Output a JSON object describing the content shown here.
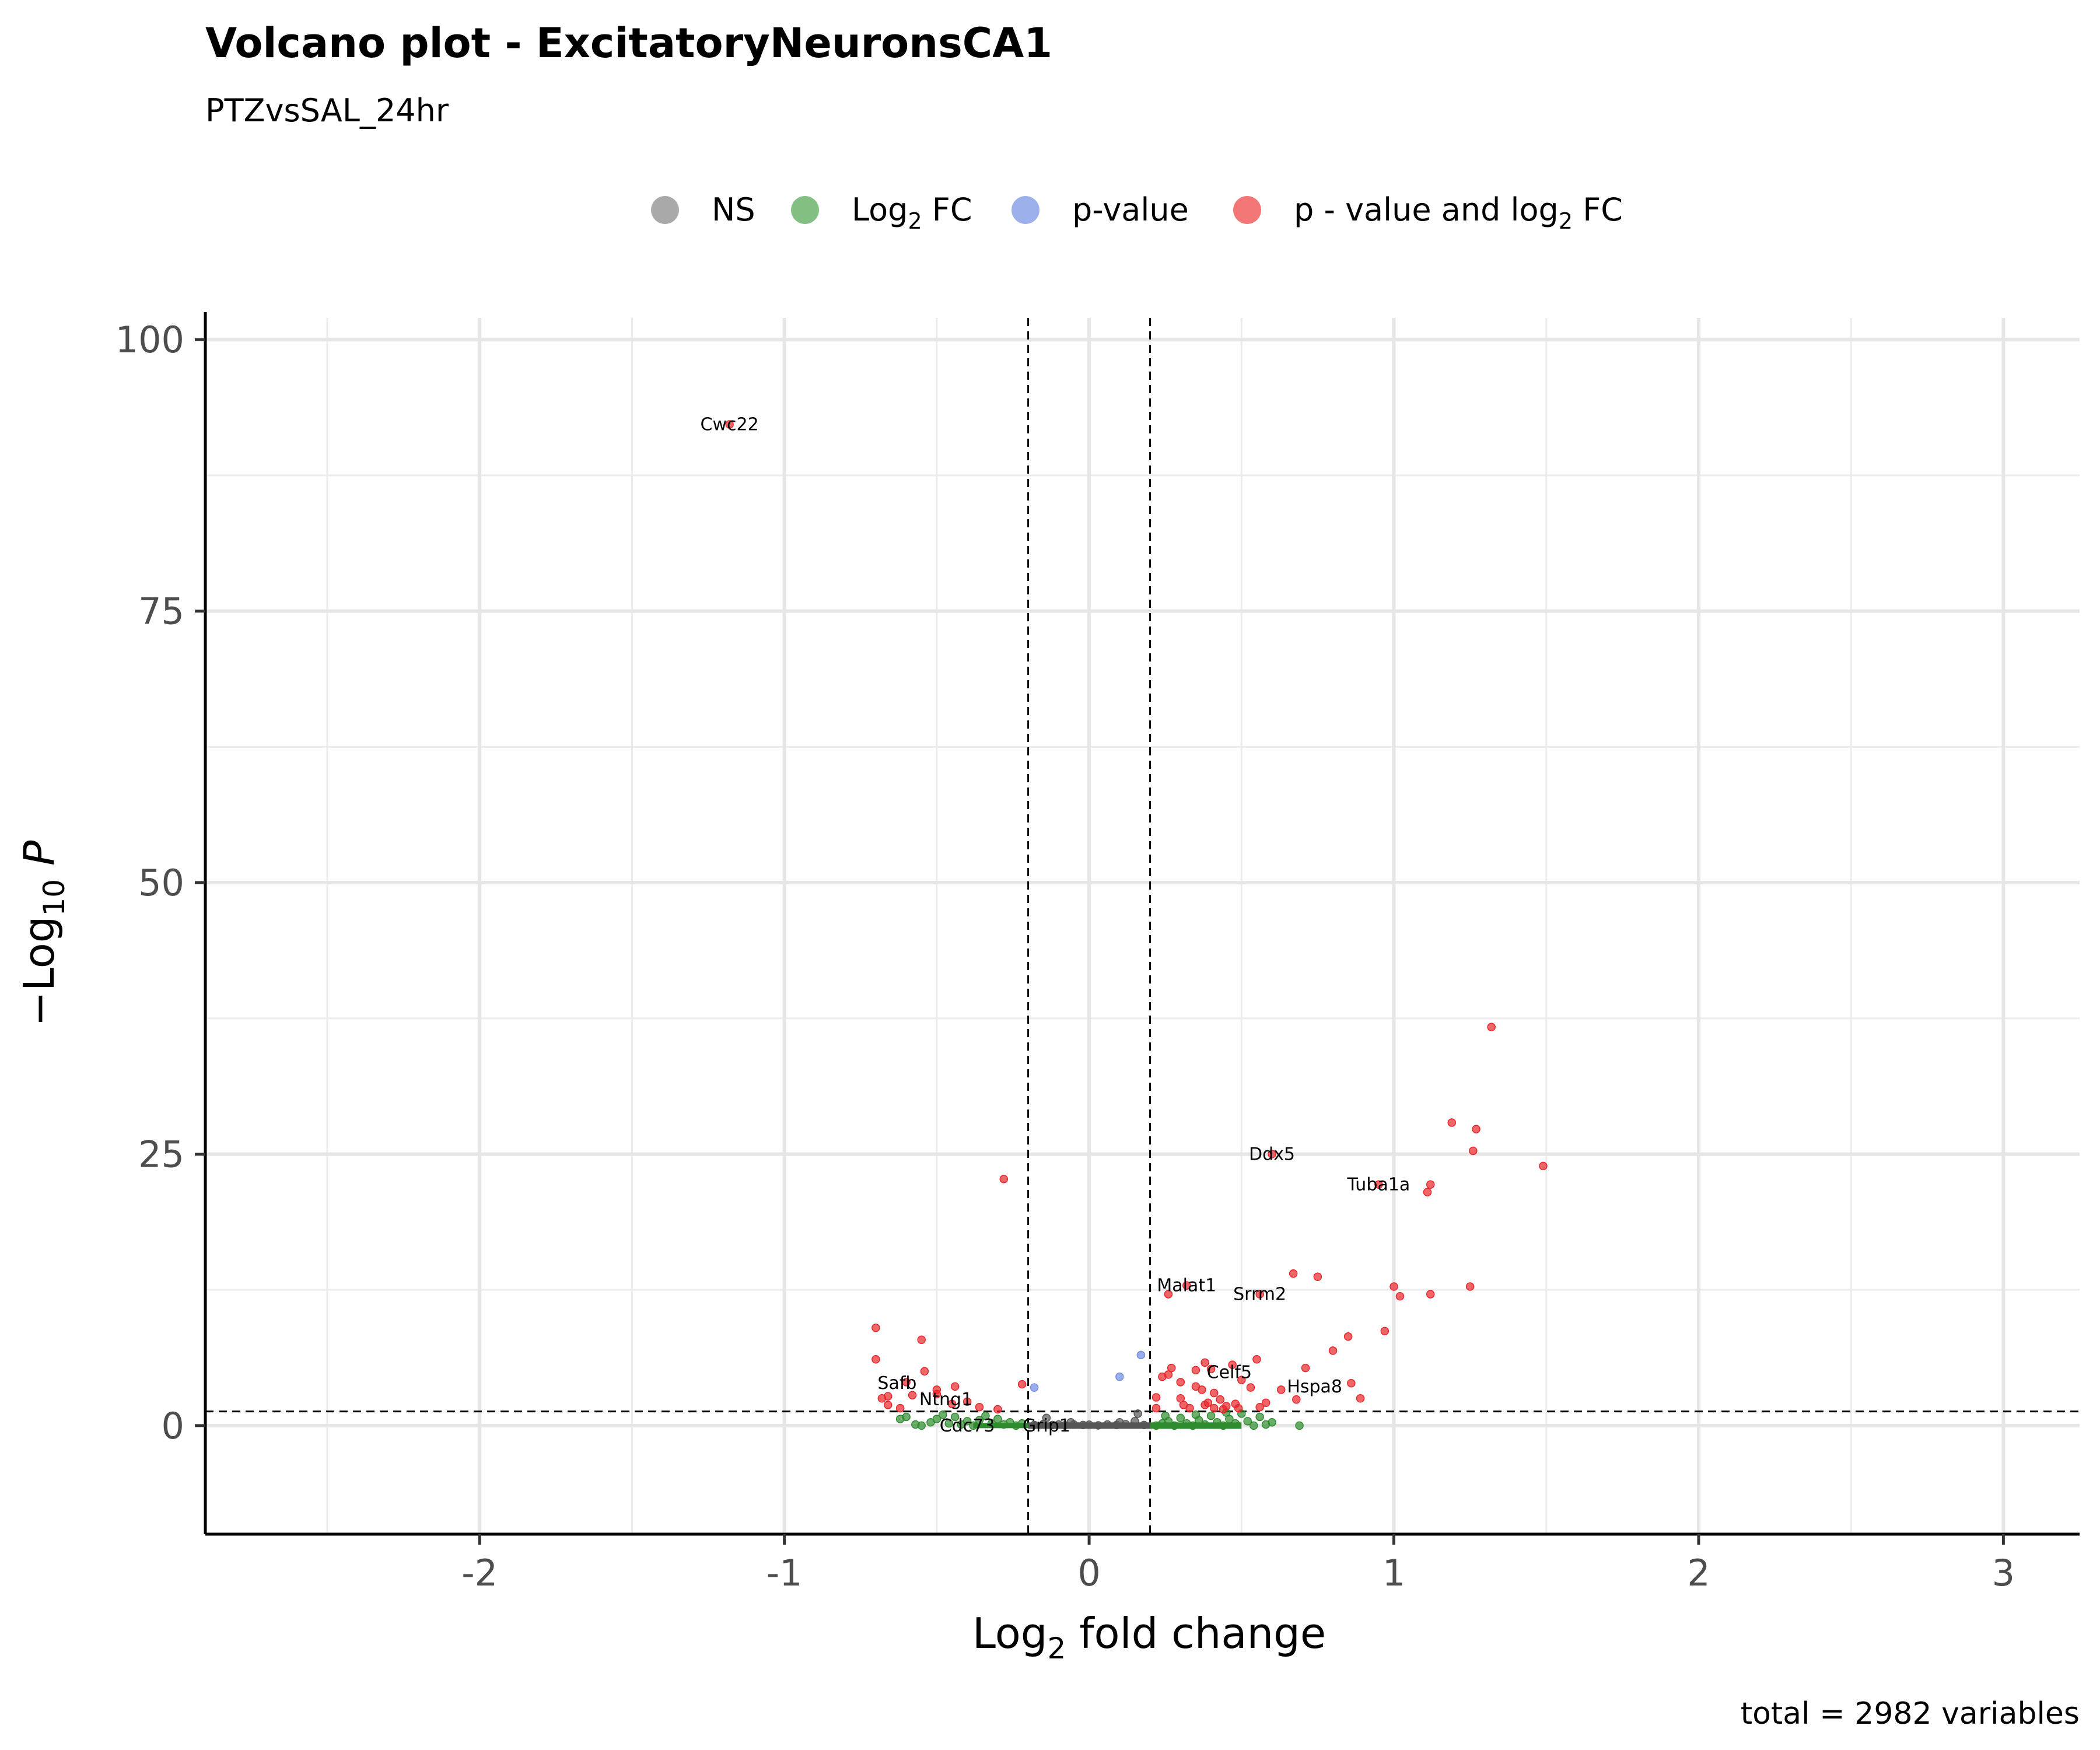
{
  "chart_data": {
    "type": "scatter",
    "title": "Volcano plot - ExcitatoryNeuronsCA1",
    "subtitle": "PTZvsSAL_24hr",
    "xlabel": "Log2 fold change",
    "ylabel": "-Log10 P",
    "caption": "total = 2982 variables",
    "xlim": [
      -2.9,
      3.25
    ],
    "ylim": [
      -10,
      102
    ],
    "x_ticks": [
      -2,
      -1,
      0,
      1,
      2,
      3
    ],
    "y_ticks": [
      0,
      25,
      50,
      75,
      100
    ],
    "x_tick_labels": [
      "-2",
      "-1",
      "0",
      "1",
      "2",
      "3"
    ],
    "y_tick_labels": [
      "0",
      "25",
      "50",
      "75",
      "100"
    ],
    "grid": true,
    "legend_position": "top",
    "thresholds": {
      "fc_cutoff": [
        -0.2,
        0.2
      ],
      "p_cutoff_neglog10": 1.3
    },
    "legend": [
      {
        "key": "NS",
        "label": "NS",
        "color": "#8c8c8c"
      },
      {
        "key": "FC",
        "label": "Log2 FC",
        "color": "#5aa85a"
      },
      {
        "key": "P",
        "label": "p-value",
        "color": "#7b96e6"
      },
      {
        "key": "FC_P",
        "label": "p - value and log2 FC",
        "color": "#f04a4a"
      }
    ],
    "series": [
      {
        "name": "NS",
        "key": "NS",
        "color": "#555555",
        "points": [
          [
            -0.18,
            0.05
          ],
          [
            -0.15,
            0.15
          ],
          [
            -0.12,
            0.05
          ],
          [
            -0.1,
            0.1
          ],
          [
            -0.08,
            0.02
          ],
          [
            -0.05,
            0.1
          ],
          [
            -0.02,
            0.05
          ],
          [
            0.0,
            0.08
          ],
          [
            0.03,
            0.02
          ],
          [
            0.06,
            0.1
          ],
          [
            0.09,
            0.05
          ],
          [
            0.12,
            0.12
          ],
          [
            0.15,
            0.4
          ],
          [
            0.16,
            1.1
          ],
          [
            0.18,
            0.05
          ],
          [
            -0.14,
            0.7
          ],
          [
            0.1,
            0.3
          ],
          [
            -0.06,
            0.3
          ]
        ]
      },
      {
        "name": "Log2 FC",
        "key": "FC",
        "color": "#2e8b2e",
        "points": [
          [
            -0.55,
            0.0
          ],
          [
            -0.52,
            0.3
          ],
          [
            -0.5,
            0.6
          ],
          [
            -0.48,
            1.0
          ],
          [
            -0.46,
            0.2
          ],
          [
            -0.44,
            0.8
          ],
          [
            -0.42,
            0.1
          ],
          [
            -0.4,
            0.4
          ],
          [
            -0.38,
            0.0
          ],
          [
            -0.36,
            0.5
          ],
          [
            -0.34,
            0.9
          ],
          [
            -0.32,
            0.2
          ],
          [
            -0.3,
            0.6
          ],
          [
            -0.28,
            0.1
          ],
          [
            -0.26,
            0.3
          ],
          [
            -0.24,
            0.0
          ],
          [
            -0.22,
            0.2
          ],
          [
            -0.6,
            0.8
          ],
          [
            -0.62,
            0.6
          ],
          [
            -0.57,
            0.1
          ],
          [
            0.22,
            0.0
          ],
          [
            0.24,
            0.2
          ],
          [
            0.26,
            0.4
          ],
          [
            0.28,
            0.0
          ],
          [
            0.3,
            0.7
          ],
          [
            0.32,
            0.2
          ],
          [
            0.34,
            0.0
          ],
          [
            0.36,
            0.5
          ],
          [
            0.38,
            0.1
          ],
          [
            0.4,
            0.9
          ],
          [
            0.42,
            0.3
          ],
          [
            0.44,
            0.0
          ],
          [
            0.46,
            0.6
          ],
          [
            0.48,
            0.2
          ],
          [
            0.5,
            1.1
          ],
          [
            0.52,
            0.4
          ],
          [
            0.54,
            0.0
          ],
          [
            0.56,
            0.8
          ],
          [
            0.58,
            0.1
          ],
          [
            0.6,
            0.3
          ],
          [
            0.69,
            0.0
          ],
          [
            0.35,
            1.0
          ],
          [
            0.45,
            1.2
          ],
          [
            0.25,
            0.9
          ]
        ]
      },
      {
        "name": "p-value",
        "key": "P",
        "color": "#6f8ce0",
        "points": [
          [
            -0.18,
            3.5
          ],
          [
            0.1,
            4.5
          ],
          [
            0.17,
            6.5
          ]
        ]
      },
      {
        "name": "p - value and log2 FC",
        "key": "FC_P",
        "color": "#e8252a",
        "points": [
          [
            -1.18,
            92.2
          ],
          [
            1.32,
            36.7
          ],
          [
            1.49,
            23.9
          ],
          [
            1.19,
            27.9
          ],
          [
            1.27,
            27.3
          ],
          [
            1.26,
            25.3
          ],
          [
            0.6,
            25.0
          ],
          [
            0.95,
            22.2
          ],
          [
            1.12,
            22.2
          ],
          [
            1.11,
            21.5
          ],
          [
            -0.28,
            22.7
          ],
          [
            0.67,
            14.0
          ],
          [
            0.75,
            13.7
          ],
          [
            1.0,
            12.8
          ],
          [
            1.02,
            11.9
          ],
          [
            1.12,
            12.1
          ],
          [
            1.25,
            12.8
          ],
          [
            0.32,
            12.9
          ],
          [
            0.26,
            12.1
          ],
          [
            0.56,
            12.1
          ],
          [
            0.85,
            8.2
          ],
          [
            0.97,
            8.7
          ],
          [
            -0.7,
            9.0
          ],
          [
            -0.55,
            7.9
          ],
          [
            -0.7,
            6.1
          ],
          [
            0.8,
            6.9
          ],
          [
            0.38,
            5.8
          ],
          [
            0.55,
            6.1
          ],
          [
            0.71,
            5.3
          ],
          [
            0.86,
            3.9
          ],
          [
            0.89,
            2.5
          ],
          [
            -0.54,
            5.0
          ],
          [
            -0.66,
            2.7
          ],
          [
            -0.68,
            2.5
          ],
          [
            -0.6,
            4.0
          ],
          [
            -0.58,
            2.8
          ],
          [
            -0.5,
            3.3
          ],
          [
            -0.5,
            2.9
          ],
          [
            -0.44,
            3.6
          ],
          [
            -0.45,
            2.0
          ],
          [
            -0.4,
            2.2
          ],
          [
            -0.36,
            1.7
          ],
          [
            -0.3,
            1.5
          ],
          [
            -0.22,
            3.8
          ],
          [
            -0.62,
            1.6
          ],
          [
            -0.66,
            1.9
          ],
          [
            0.22,
            1.6
          ],
          [
            0.22,
            2.6
          ],
          [
            0.24,
            4.5
          ],
          [
            0.27,
            5.3
          ],
          [
            0.26,
            4.7
          ],
          [
            0.3,
            4.0
          ],
          [
            0.3,
            2.5
          ],
          [
            0.31,
            1.9
          ],
          [
            0.33,
            1.6
          ],
          [
            0.35,
            5.1
          ],
          [
            0.35,
            3.6
          ],
          [
            0.37,
            3.3
          ],
          [
            0.39,
            2.1
          ],
          [
            0.4,
            5.2
          ],
          [
            0.41,
            3.0
          ],
          [
            0.43,
            2.4
          ],
          [
            0.45,
            1.8
          ],
          [
            0.47,
            5.6
          ],
          [
            0.48,
            2.0
          ],
          [
            0.5,
            4.2
          ],
          [
            0.53,
            3.5
          ],
          [
            0.56,
            1.7
          ],
          [
            0.58,
            2.1
          ],
          [
            0.63,
            3.3
          ],
          [
            0.68,
            2.4
          ],
          [
            0.41,
            1.6
          ],
          [
            0.44,
            1.5
          ],
          [
            0.49,
            1.6
          ],
          [
            0.38,
            1.9
          ]
        ]
      }
    ],
    "labels": [
      {
        "text": "Cwc22",
        "x": -1.18,
        "y": 92.2
      },
      {
        "text": "Ddx5",
        "x": 0.6,
        "y": 25.0
      },
      {
        "text": "Tuba1a",
        "x": 0.95,
        "y": 22.2
      },
      {
        "text": "Malat1",
        "x": 0.32,
        "y": 12.9
      },
      {
        "text": "Srrm2",
        "x": 0.56,
        "y": 12.1
      },
      {
        "text": "Celf5",
        "x": 0.46,
        "y": 4.9
      },
      {
        "text": "Hspa8",
        "x": 0.74,
        "y": 3.6
      },
      {
        "text": "Safb",
        "x": -0.63,
        "y": 3.9
      },
      {
        "text": "Ntng1",
        "x": -0.47,
        "y": 2.4
      },
      {
        "text": "Cdc73",
        "x": -0.4,
        "y": 0.0
      },
      {
        "text": "Grip1",
        "x": -0.14,
        "y": 0.0
      }
    ]
  }
}
